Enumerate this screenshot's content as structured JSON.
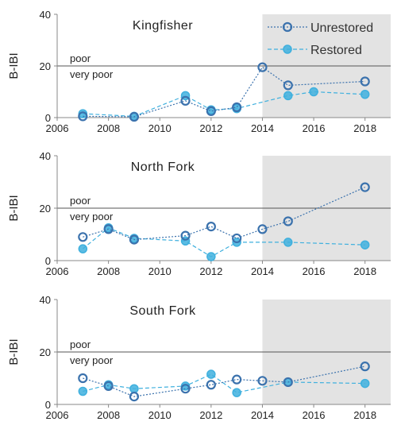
{
  "chart_data": [
    {
      "type": "line",
      "title": "Kingfisher",
      "ylabel": "B-IBI",
      "xlim": [
        2006,
        2019
      ],
      "ylim": [
        0,
        40
      ],
      "xticks": [
        2006,
        2008,
        2010,
        2012,
        2014,
        2016,
        2018
      ],
      "yticks": [
        0,
        20,
        40
      ],
      "threshold": {
        "value": 20,
        "above_label": "poor",
        "below_label": "very poor"
      },
      "shaded_from": 2014,
      "series": [
        {
          "name": "Unrestored",
          "color": "#3b72ad",
          "x": [
            2007,
            2009,
            2011,
            2012,
            2013,
            2014,
            2015,
            2018
          ],
          "y": [
            0.5,
            0.3,
            6.5,
            2.5,
            4,
            19.5,
            12.5,
            14
          ]
        },
        {
          "name": "Restored",
          "color": "#3fb0de",
          "x": [
            2007,
            2009,
            2011,
            2012,
            2013,
            2015,
            2016,
            2018
          ],
          "y": [
            1.5,
            0.5,
            8.5,
            3,
            3.5,
            8.5,
            10,
            9
          ]
        }
      ]
    },
    {
      "type": "line",
      "title": "North Fork",
      "ylabel": "B-IBI",
      "xlim": [
        2006,
        2019
      ],
      "ylim": [
        0,
        40
      ],
      "xticks": [
        2006,
        2008,
        2010,
        2012,
        2014,
        2016,
        2018
      ],
      "yticks": [
        0,
        20,
        40
      ],
      "threshold": {
        "value": 20,
        "above_label": "poor",
        "below_label": "very poor"
      },
      "shaded_from": 2014,
      "series": [
        {
          "name": "Unrestored",
          "color": "#3b72ad",
          "x": [
            2007,
            2008,
            2009,
            2011,
            2012,
            2013,
            2014,
            2015,
            2018
          ],
          "y": [
            9,
            12,
            8,
            9.5,
            13,
            8.5,
            12,
            15,
            28
          ]
        },
        {
          "name": "Restored",
          "color": "#3fb0de",
          "x": [
            2007,
            2008,
            2009,
            2011,
            2012,
            2013,
            2015,
            2018
          ],
          "y": [
            4.5,
            12.5,
            8.5,
            7.5,
            1.5,
            7,
            7,
            6
          ]
        }
      ]
    },
    {
      "type": "line",
      "title": "South Fork",
      "ylabel": "B-IBI",
      "xlim": [
        2006,
        2019
      ],
      "ylim": [
        0,
        40
      ],
      "xticks": [
        2006,
        2008,
        2010,
        2012,
        2014,
        2016,
        2018
      ],
      "yticks": [
        0,
        20,
        40
      ],
      "threshold": {
        "value": 20,
        "above_label": "poor",
        "below_label": "very poor"
      },
      "shaded_from": 2014,
      "series": [
        {
          "name": "Unrestored",
          "color": "#3b72ad",
          "x": [
            2007,
            2008,
            2009,
            2011,
            2012,
            2013,
            2014,
            2015,
            2018
          ],
          "y": [
            10,
            7,
            3,
            6,
            7.5,
            9.5,
            9,
            8.5,
            14.5
          ]
        },
        {
          "name": "Restored",
          "color": "#3fb0de",
          "x": [
            2007,
            2008,
            2009,
            2011,
            2012,
            2013,
            2015,
            2018
          ],
          "y": [
            5,
            7.5,
            6,
            7,
            11.5,
            4.5,
            8.5,
            8
          ]
        }
      ]
    }
  ],
  "legend": {
    "placement": "top-right",
    "entries": [
      {
        "label": "Unrestored",
        "color": "#3b72ad"
      },
      {
        "label": "Restored",
        "color": "#3fb0de"
      }
    ]
  },
  "colors": {
    "shade": "#e3e3e3",
    "threshold": "#555555",
    "axis": "#888888"
  }
}
